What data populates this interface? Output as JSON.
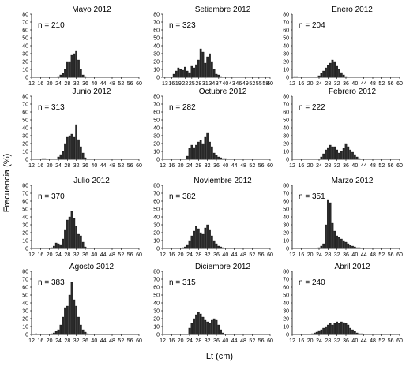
{
  "figure": {
    "ylabel": "Frecuencia (%)",
    "xlabel": "Lt (cm)"
  },
  "chart_data": [
    {
      "type": "bar",
      "title": "Mayo 2012",
      "n_label": "n = 210",
      "ylim": [
        0,
        80
      ],
      "yticks": [
        0,
        10,
        20,
        30,
        40,
        50,
        60,
        70,
        80
      ],
      "xticks": [
        "12",
        "16",
        "20",
        "24",
        "28",
        "32",
        "36",
        "40",
        "44",
        "48",
        "52",
        "56",
        "60"
      ],
      "x": [
        24,
        25,
        26,
        27,
        28,
        29,
        30,
        31,
        32,
        33,
        34,
        35,
        36
      ],
      "values": [
        1,
        3,
        5,
        10,
        20,
        20,
        28,
        30,
        33,
        22,
        10,
        3,
        1
      ]
    },
    {
      "type": "bar",
      "title": "Setiembre 2012",
      "n_label": "n = 323",
      "ylim": [
        0,
        80
      ],
      "yticks": [
        0,
        10,
        20,
        30,
        40,
        50,
        60,
        70,
        80
      ],
      "xticks": [
        "13",
        "16",
        "19",
        "22",
        "25",
        "28",
        "31",
        "34",
        "37",
        "40",
        "43",
        "46",
        "49",
        "52",
        "55",
        "58",
        "60"
      ],
      "x": [
        17,
        18,
        19,
        20,
        21,
        22,
        23,
        24,
        25,
        26,
        27,
        28,
        29,
        30,
        31,
        32,
        33,
        34,
        35,
        36,
        37,
        38
      ],
      "values": [
        4,
        8,
        12,
        10,
        9,
        13,
        8,
        6,
        14,
        12,
        16,
        22,
        36,
        32,
        18,
        26,
        30,
        20,
        10,
        4,
        3,
        1
      ]
    },
    {
      "type": "bar",
      "title": "Enero 2012",
      "n_label": "n = 204",
      "ylim": [
        0,
        80
      ],
      "yticks": [
        0,
        10,
        20,
        30,
        40,
        50,
        60,
        70,
        80
      ],
      "xticks": [
        "12",
        "16",
        "20",
        "24",
        "28",
        "32",
        "36",
        "40",
        "44",
        "48",
        "52",
        "56",
        "60"
      ],
      "x": [
        13,
        14,
        24,
        25,
        26,
        27,
        28,
        29,
        30,
        31,
        32,
        33,
        34,
        35,
        36
      ],
      "values": [
        1,
        1,
        2,
        5,
        8,
        12,
        15,
        18,
        22,
        20,
        14,
        10,
        6,
        3,
        1
      ]
    },
    {
      "type": "bar",
      "title": "Junio 2012",
      "n_label": "n = 313",
      "ylim": [
        0,
        80
      ],
      "yticks": [
        0,
        10,
        20,
        30,
        40,
        50,
        60,
        70,
        80
      ],
      "xticks": [
        "12",
        "16",
        "20",
        "24",
        "28",
        "32",
        "36",
        "40",
        "44",
        "48",
        "52",
        "56",
        "60"
      ],
      "x": [
        17,
        18,
        24,
        25,
        26,
        27,
        28,
        29,
        30,
        31,
        32,
        33,
        34,
        35,
        36
      ],
      "values": [
        1,
        1,
        3,
        6,
        10,
        20,
        28,
        30,
        32,
        28,
        44,
        25,
        16,
        8,
        2
      ]
    },
    {
      "type": "bar",
      "title": "Octubre 2012",
      "n_label": "n = 282",
      "ylim": [
        0,
        80
      ],
      "yticks": [
        0,
        10,
        20,
        30,
        40,
        50,
        60,
        70,
        80
      ],
      "xticks": [
        "12",
        "16",
        "20",
        "24",
        "28",
        "32",
        "36",
        "40",
        "44",
        "48",
        "52",
        "56",
        "60"
      ],
      "x": [
        23,
        24,
        25,
        26,
        27,
        28,
        29,
        30,
        31,
        32,
        33,
        34,
        35,
        36,
        37,
        38,
        39,
        40
      ],
      "values": [
        4,
        14,
        18,
        15,
        18,
        22,
        24,
        20,
        28,
        34,
        22,
        16,
        8,
        5,
        3,
        2,
        1,
        1
      ]
    },
    {
      "type": "bar",
      "title": "Febrero 2012",
      "n_label": "n = 222",
      "ylim": [
        0,
        80
      ],
      "yticks": [
        0,
        10,
        20,
        30,
        40,
        50,
        60,
        70,
        80
      ],
      "xticks": [
        "12",
        "16",
        "20",
        "24",
        "28",
        "32",
        "36",
        "40",
        "44",
        "48",
        "52",
        "56",
        "60"
      ],
      "x": [
        25,
        26,
        27,
        28,
        29,
        30,
        31,
        32,
        33,
        34,
        35,
        36,
        37,
        38,
        39,
        40,
        41,
        42
      ],
      "values": [
        3,
        7,
        12,
        15,
        18,
        16,
        16,
        12,
        8,
        10,
        14,
        20,
        16,
        12,
        9,
        6,
        3,
        1
      ]
    },
    {
      "type": "bar",
      "title": "Julio 2012",
      "n_label": "n = 370",
      "ylim": [
        0,
        80
      ],
      "yticks": [
        0,
        10,
        20,
        30,
        40,
        50,
        60,
        70,
        80
      ],
      "xticks": [
        "12",
        "16",
        "20",
        "24",
        "28",
        "32",
        "36",
        "40",
        "44",
        "48",
        "52",
        "56",
        "60"
      ],
      "x": [
        21,
        22,
        23,
        24,
        25,
        26,
        27,
        28,
        29,
        30,
        31,
        32,
        33,
        34,
        35,
        36
      ],
      "values": [
        1,
        3,
        7,
        6,
        5,
        12,
        24,
        36,
        40,
        47,
        38,
        28,
        18,
        16,
        8,
        2
      ]
    },
    {
      "type": "bar",
      "title": "Noviembre 2012",
      "n_label": "n = 382",
      "ylim": [
        0,
        80
      ],
      "yticks": [
        0,
        10,
        20,
        30,
        40,
        50,
        60,
        70,
        80
      ],
      "xticks": [
        "12",
        "16",
        "20",
        "24",
        "28",
        "32",
        "36",
        "40",
        "44",
        "48",
        "52",
        "56",
        "60"
      ],
      "x": [
        21,
        22,
        23,
        24,
        25,
        26,
        27,
        28,
        29,
        30,
        31,
        32,
        33,
        34,
        35,
        36,
        37,
        38,
        39
      ],
      "values": [
        1,
        2,
        5,
        10,
        16,
        22,
        28,
        25,
        20,
        18,
        26,
        30,
        24,
        16,
        10,
        6,
        3,
        2,
        1
      ]
    },
    {
      "type": "bar",
      "title": "Marzo 2012",
      "n_label": "n = 351",
      "ylim": [
        0,
        80
      ],
      "yticks": [
        0,
        10,
        20,
        30,
        40,
        50,
        60,
        70,
        80
      ],
      "xticks": [
        "12",
        "16",
        "20",
        "24",
        "28",
        "32",
        "36",
        "40",
        "44",
        "48",
        "52",
        "56",
        "60"
      ],
      "x": [
        24,
        25,
        26,
        27,
        28,
        29,
        30,
        31,
        32,
        33,
        34,
        35,
        36,
        37,
        38,
        39,
        40,
        41,
        42
      ],
      "values": [
        1,
        3,
        6,
        30,
        62,
        58,
        32,
        22,
        16,
        14,
        12,
        10,
        8,
        6,
        4,
        3,
        2,
        1,
        1
      ]
    },
    {
      "type": "bar",
      "title": "Agosto 2012",
      "n_label": "n = 383",
      "ylim": [
        0,
        80
      ],
      "yticks": [
        0,
        10,
        20,
        30,
        40,
        50,
        60,
        70,
        80
      ],
      "xticks": [
        "12",
        "16",
        "20",
        "24",
        "28",
        "32",
        "36",
        "40",
        "44",
        "48",
        "52",
        "56",
        "60"
      ],
      "x": [
        14,
        21,
        22,
        23,
        24,
        25,
        26,
        27,
        28,
        29,
        30,
        31,
        32,
        33,
        34,
        35,
        36,
        37
      ],
      "values": [
        1,
        1,
        2,
        4,
        6,
        12,
        22,
        34,
        36,
        50,
        66,
        44,
        36,
        22,
        12,
        6,
        3,
        1
      ]
    },
    {
      "type": "bar",
      "title": "Diciembre 2012",
      "n_label": "n = 315",
      "ylim": [
        0,
        80
      ],
      "yticks": [
        0,
        10,
        20,
        30,
        40,
        50,
        60,
        70,
        80
      ],
      "xticks": [
        "12",
        "16",
        "20",
        "24",
        "28",
        "32",
        "36",
        "40",
        "44",
        "48",
        "52",
        "56",
        "60"
      ],
      "x": [
        24,
        25,
        26,
        27,
        28,
        29,
        30,
        31,
        32,
        33,
        34,
        35,
        36,
        37,
        38,
        39
      ],
      "values": [
        8,
        14,
        20,
        25,
        28,
        26,
        22,
        18,
        16,
        14,
        18,
        20,
        18,
        12,
        6,
        2
      ]
    },
    {
      "type": "bar",
      "title": "Abril 2012",
      "n_label": "n = 240",
      "ylim": [
        0,
        80
      ],
      "yticks": [
        0,
        10,
        20,
        30,
        40,
        50,
        60,
        70,
        80
      ],
      "xticks": [
        "12",
        "16",
        "20",
        "24",
        "28",
        "32",
        "36",
        "40",
        "44",
        "48",
        "52",
        "56",
        "60"
      ],
      "x": [
        21,
        22,
        23,
        24,
        25,
        26,
        27,
        28,
        29,
        30,
        31,
        32,
        33,
        34,
        35,
        36,
        37,
        38,
        39,
        40,
        41,
        42,
        43
      ],
      "values": [
        1,
        2,
        3,
        5,
        6,
        8,
        10,
        12,
        14,
        12,
        14,
        16,
        14,
        16,
        15,
        14,
        12,
        8,
        6,
        4,
        2,
        1,
        1
      ]
    }
  ]
}
